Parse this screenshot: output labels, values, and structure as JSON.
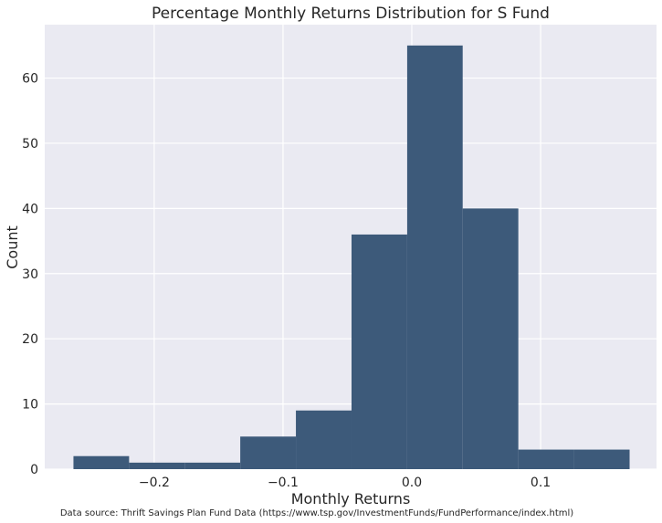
{
  "chart_data": {
    "type": "bar",
    "title": "Percentage Monthly Returns Distribution for S Fund",
    "xlabel": "Monthly Returns",
    "ylabel": "Count",
    "source": "Data source: Thrift Savings Plan Fund Data (https://www.tsp.gov/InvestmentFunds/FundPerformance/index.html)",
    "bin_edges": [
      -0.2627,
      -0.2195,
      -0.1763,
      -0.1332,
      -0.09,
      -0.0468,
      -0.0036,
      0.0395,
      0.0827,
      0.1259,
      0.1691
    ],
    "values": [
      2,
      1,
      1,
      5,
      9,
      36,
      65,
      40,
      3,
      3
    ],
    "xlim": [
      -0.285,
      0.19
    ],
    "ylim": [
      0,
      68.2
    ],
    "x_ticks": [
      -0.2,
      -0.1,
      0.0,
      0.1
    ],
    "x_tick_labels": [
      "−0.2",
      "−0.1",
      "0.0",
      "0.1"
    ],
    "y_ticks": [
      0,
      10,
      20,
      30,
      40,
      50,
      60
    ],
    "y_tick_labels": [
      "0",
      "10",
      "20",
      "30",
      "40",
      "50",
      "60"
    ],
    "grid": true,
    "bar_color": "#3d5a7a",
    "plot_background": "#eaeaf2",
    "grid_color": "#ffffff"
  }
}
